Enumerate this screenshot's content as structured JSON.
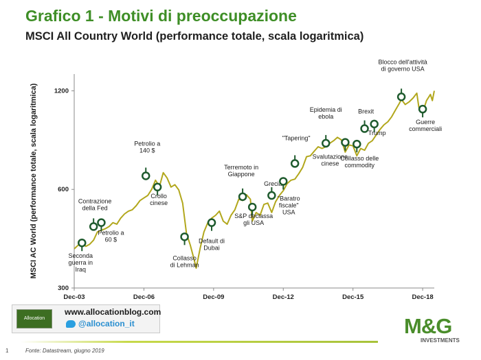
{
  "header": {
    "title": "Grafico 1 - Motivi di preoccupazione",
    "subtitle": "MSCI All Country World (performance totale, scala logaritmica)"
  },
  "chart_data": {
    "type": "line",
    "ylabel": "MSCI AC World (performance totale, scala logaritmica)",
    "yscale": "log",
    "ylim": [
      300,
      1350
    ],
    "yticks": [
      300,
      600,
      1200
    ],
    "xlim": [
      "2003-12",
      "2019-06"
    ],
    "xticks": [
      "Dec-03",
      "Dec-06",
      "Dec-09",
      "Dec-12",
      "Dec-15",
      "Dec-18"
    ],
    "xtick_dates": [
      "2003-12",
      "2006-12",
      "2009-12",
      "2012-12",
      "2015-12",
      "2018-12"
    ],
    "line_color": "#b2a71c",
    "marker_color": "#1e5a2d",
    "series": [
      {
        "dates": [
          "2003-12",
          "2004-02",
          "2004-04",
          "2004-06",
          "2004-08",
          "2004-10",
          "2004-12",
          "2005-02",
          "2005-04",
          "2005-06",
          "2005-08",
          "2005-10",
          "2005-12",
          "2006-02",
          "2006-04",
          "2006-06",
          "2006-08",
          "2006-10",
          "2006-12",
          "2007-02",
          "2007-04",
          "2007-06",
          "2007-08",
          "2007-10",
          "2007-12",
          "2008-02",
          "2008-04",
          "2008-06",
          "2008-08",
          "2008-10",
          "2008-12",
          "2009-02",
          "2009-03",
          "2009-05",
          "2009-07",
          "2009-09",
          "2009-11",
          "2010-01",
          "2010-03",
          "2010-05",
          "2010-07",
          "2010-09",
          "2010-11",
          "2011-01",
          "2011-03",
          "2011-05",
          "2011-07",
          "2011-08",
          "2011-10",
          "2011-12",
          "2012-02",
          "2012-04",
          "2012-06",
          "2012-08",
          "2012-10",
          "2012-12",
          "2013-02",
          "2013-04",
          "2013-06",
          "2013-08",
          "2013-10",
          "2013-12",
          "2014-02",
          "2014-04",
          "2014-06",
          "2014-08",
          "2014-10",
          "2014-12",
          "2015-02",
          "2015-04",
          "2015-06",
          "2015-08",
          "2015-10",
          "2015-12",
          "2016-02",
          "2016-04",
          "2016-06",
          "2016-08",
          "2016-10",
          "2016-12",
          "2017-02",
          "2017-04",
          "2017-06",
          "2017-08",
          "2017-10",
          "2017-12",
          "2018-01",
          "2018-03",
          "2018-05",
          "2018-07",
          "2018-09",
          "2018-10",
          "2018-12",
          "2019-02",
          "2019-04",
          "2019-05",
          "2019-06"
        ],
        "values": [
          395,
          405,
          412,
          402,
          408,
          420,
          445,
          450,
          455,
          462,
          475,
          470,
          490,
          505,
          515,
          520,
          535,
          555,
          565,
          575,
          600,
          640,
          612,
          675,
          650,
          610,
          620,
          598,
          545,
          440,
          405,
          365,
          345,
          395,
          445,
          475,
          490,
          500,
          515,
          480,
          470,
          500,
          520,
          560,
          555,
          578,
          560,
          480,
          510,
          500,
          540,
          545,
          510,
          550,
          575,
          595,
          625,
          640,
          645,
          670,
          700,
          755,
          760,
          785,
          810,
          800,
          810,
          830,
          845,
          865,
          850,
          780,
          820,
          815,
          760,
          800,
          790,
          830,
          845,
          880,
          915,
          945,
          965,
          1000,
          1050,
          1100,
          1130,
          1090,
          1110,
          1140,
          1180,
          1070,
          1030,
          1120,
          1170,
          1120,
          1200
        ]
      }
    ],
    "events": [
      {
        "date": "2004-04",
        "value": 412,
        "label": "Seconda guerra in Iraq"
      },
      {
        "date": "2004-10",
        "value": 462,
        "label": "Contrazione della Fed"
      },
      {
        "date": "2005-02",
        "value": 475,
        "label": "Petrolio a 60 $"
      },
      {
        "date": "2007-01",
        "value": 660,
        "label": "Petrolio a 140 $"
      },
      {
        "date": "2007-07",
        "value": 610,
        "label": "Crollo cinese"
      },
      {
        "date": "2008-09",
        "value": 430,
        "label": "Collasso di Lehman"
      },
      {
        "date": "2009-11",
        "value": 475,
        "label": "Default di Dubai"
      },
      {
        "date": "2011-03",
        "value": 570,
        "label": "Terremoto in Giappone"
      },
      {
        "date": "2011-08",
        "value": 530,
        "label": "S&P declassa gli USA"
      },
      {
        "date": "2012-06",
        "value": 575,
        "label": "Grecia"
      },
      {
        "date": "2012-12",
        "value": 635,
        "label": "\"Baratro fiscale\" USA"
      },
      {
        "date": "2013-06",
        "value": 720,
        "label": "\"Tapering\""
      },
      {
        "date": "2014-10",
        "value": 830,
        "label": "Epidemia di ebola"
      },
      {
        "date": "2015-08",
        "value": 835,
        "label": "Svalutazione cinese"
      },
      {
        "date": "2016-02",
        "value": 825,
        "label": "Collasso delle commodity"
      },
      {
        "date": "2016-06",
        "value": 920,
        "label": "Brexit"
      },
      {
        "date": "2016-11",
        "value": 950,
        "label": "Trump"
      },
      {
        "date": "2018-01",
        "value": 1150,
        "label": "Blocco dell'attività di governo USA"
      },
      {
        "date": "2018-12",
        "value": 1055,
        "label": "Guerre commerciali"
      }
    ]
  },
  "branding": {
    "blog_url": "www.allocationblog.com",
    "twitter_handle": "@allocation_it",
    "allocation_logo_text": "Allocation",
    "mg_logo_text": "M&G",
    "mg_logo_sub": "INVESTMENTS",
    "twitter_icon": "twitter-bird-icon"
  },
  "footer": {
    "page_number": "1",
    "source": "Fonte: Datastream, giugno 2019"
  }
}
